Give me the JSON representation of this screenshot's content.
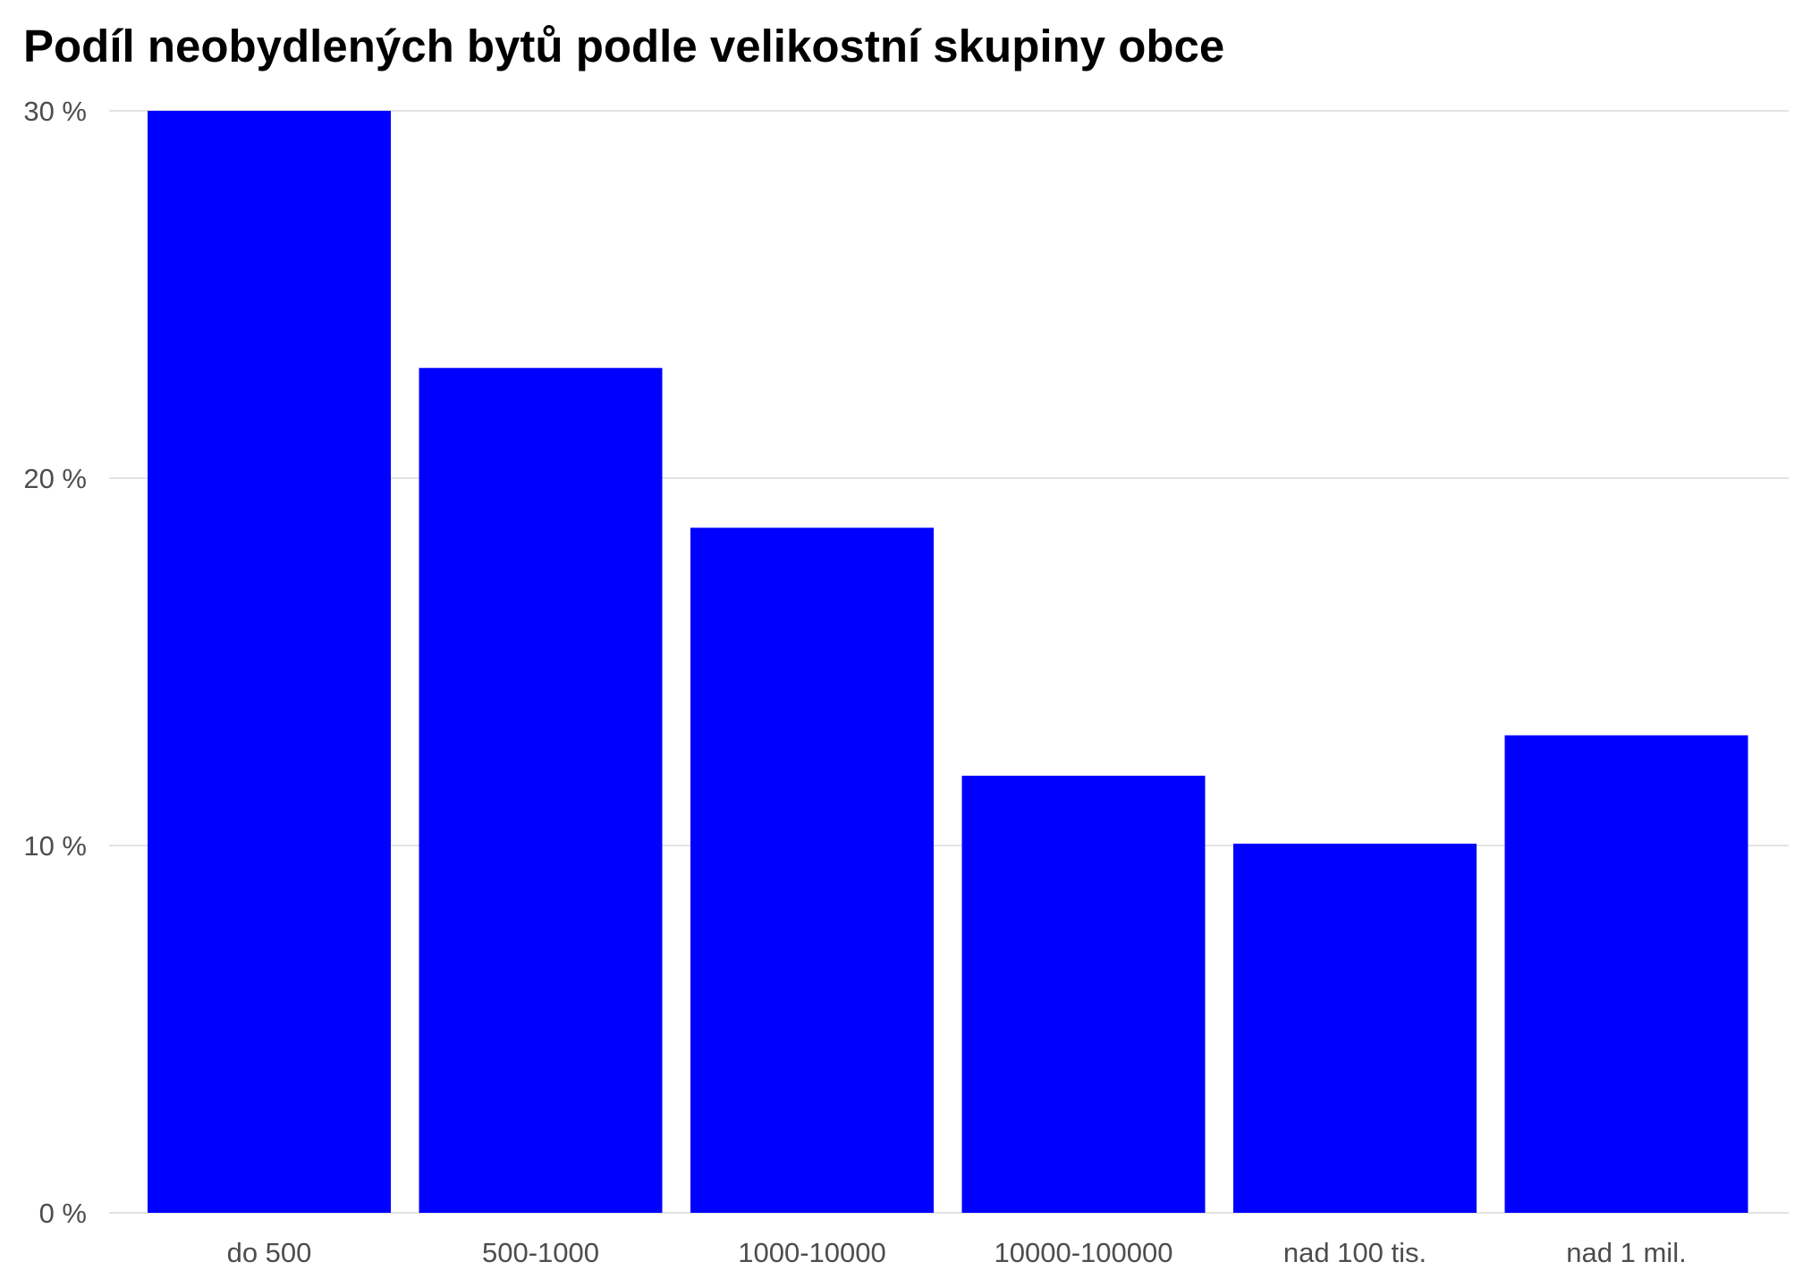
{
  "chart_data": {
    "type": "bar",
    "title": "Podíl neobydlených bytů podle velikostní skupiny obce",
    "xlabel": "",
    "ylabel": "",
    "categories": [
      "do 500",
      "500-1000",
      "1000-10000",
      "10000-100000",
      "nad 100 tis.",
      "nad 1 mil."
    ],
    "values": [
      30.0,
      23.0,
      18.65,
      11.9,
      10.05,
      13.0
    ],
    "ylim": [
      0,
      30
    ],
    "y_ticks": [
      0,
      10,
      20,
      30
    ],
    "y_tick_labels": [
      "0 %",
      "10 %",
      "20 %",
      "30 %"
    ],
    "grid": true,
    "bar_color": "#0000ff",
    "grid_color": "#e3e3e3",
    "tick_label_color": "#4d4d4d"
  }
}
